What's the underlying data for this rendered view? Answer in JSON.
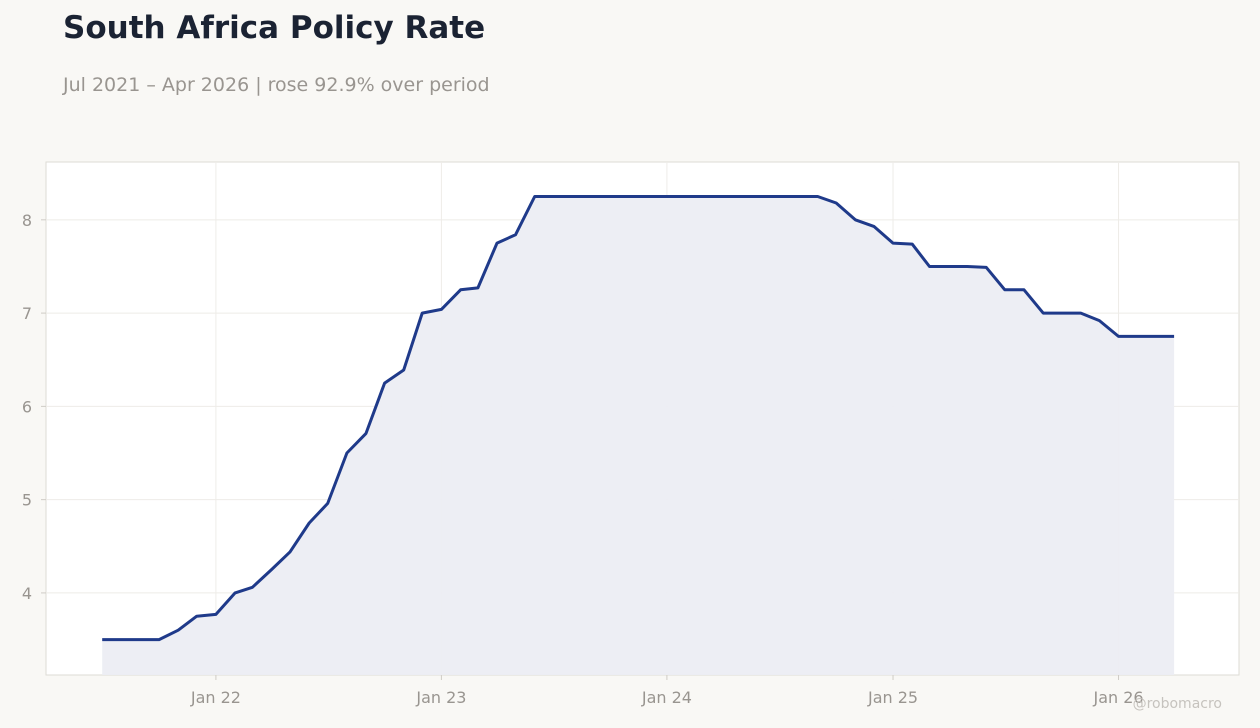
{
  "colors": {
    "background": "#f9f8f5",
    "plot_background": "#ffffff",
    "line": "#1f3a8a",
    "fill": "#ecedf3",
    "title": "#1b2333",
    "muted": "#999590"
  },
  "chart_data": {
    "type": "area",
    "title": "South Africa Policy Rate",
    "subtitle": "Jul 2021 – Apr 2026 | rose 92.9% over period",
    "xlabel": "",
    "ylabel": "",
    "xlim": [
      "2021-04-01",
      "2026-07-15"
    ],
    "ylim": [
      3.12,
      8.62
    ],
    "grid": true,
    "legend": "none",
    "yticks": [
      4,
      5,
      6,
      7,
      8
    ],
    "xticks": [
      {
        "date": "2022-01-01",
        "label": "Jan 22"
      },
      {
        "date": "2023-01-01",
        "label": "Jan 23"
      },
      {
        "date": "2024-01-01",
        "label": "Jan 24"
      },
      {
        "date": "2025-01-01",
        "label": "Jan 25"
      },
      {
        "date": "2026-01-01",
        "label": "Jan 26"
      }
    ],
    "series": [
      {
        "x": [
          "2021-07-01",
          "2021-08-01",
          "2021-09-01",
          "2021-10-01",
          "2021-11-01",
          "2021-12-01",
          "2022-01-01",
          "2022-02-01",
          "2022-03-01",
          "2022-04-01",
          "2022-05-01",
          "2022-06-01",
          "2022-07-01",
          "2022-08-01",
          "2022-09-01",
          "2022-10-01",
          "2022-11-01",
          "2022-12-01",
          "2023-01-01",
          "2023-02-01",
          "2023-03-01",
          "2023-04-01",
          "2023-05-01",
          "2023-06-01",
          "2023-07-01",
          "2023-08-01",
          "2023-09-01",
          "2023-10-01",
          "2023-11-01",
          "2023-12-01",
          "2024-01-01",
          "2024-02-01",
          "2024-03-01",
          "2024-04-01",
          "2024-05-01",
          "2024-06-01",
          "2024-07-01",
          "2024-08-01",
          "2024-09-01",
          "2024-10-01",
          "2024-11-01",
          "2024-12-01",
          "2025-01-01",
          "2025-02-01",
          "2025-03-01",
          "2025-04-01",
          "2025-05-01",
          "2025-06-01",
          "2025-07-01",
          "2025-08-01",
          "2025-09-01",
          "2025-10-01",
          "2025-11-01",
          "2025-12-01",
          "2026-01-01",
          "2026-02-01",
          "2026-03-01",
          "2026-04-01"
        ],
        "values": [
          3.5,
          3.5,
          3.5,
          3.5,
          3.6,
          3.75,
          3.77,
          4.0,
          4.06,
          4.25,
          4.44,
          4.75,
          4.96,
          5.5,
          5.71,
          6.25,
          6.39,
          7.0,
          7.04,
          7.25,
          7.27,
          7.75,
          7.84,
          8.25,
          8.25,
          8.25,
          8.25,
          8.25,
          8.25,
          8.25,
          8.25,
          8.25,
          8.25,
          8.25,
          8.25,
          8.25,
          8.25,
          8.25,
          8.25,
          8.18,
          8.0,
          7.93,
          7.75,
          7.74,
          7.5,
          7.5,
          7.5,
          7.49,
          7.25,
          7.25,
          7.0,
          7.0,
          7.0,
          6.92,
          6.75,
          6.75,
          6.75,
          6.75
        ]
      }
    ]
  },
  "watermark": "@robomacro"
}
